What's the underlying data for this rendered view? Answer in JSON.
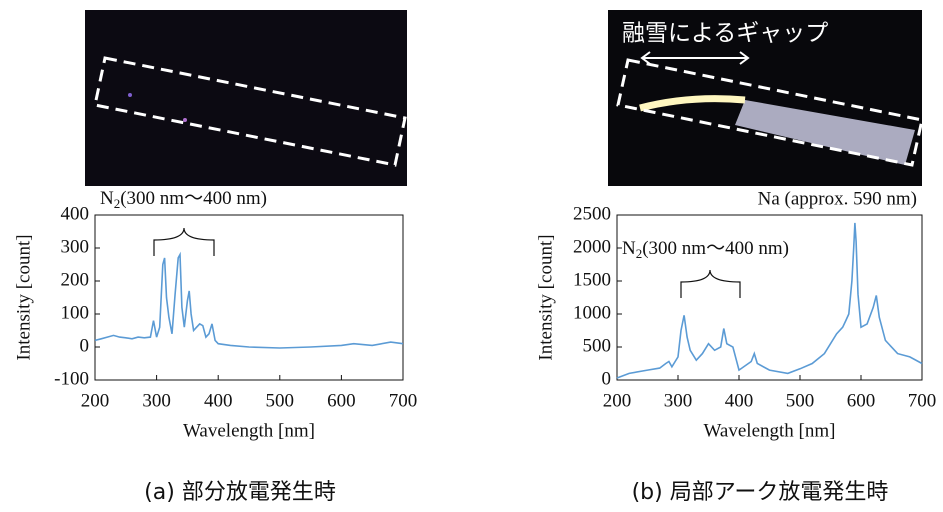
{
  "chart_data": [
    {
      "type": "line",
      "color": "#5b9bd5",
      "x": [
        200,
        210,
        220,
        230,
        240,
        250,
        260,
        270,
        280,
        290,
        295,
        300,
        305,
        310,
        313,
        316,
        320,
        325,
        330,
        335,
        338,
        341,
        345,
        350,
        353,
        356,
        360,
        365,
        370,
        375,
        380,
        385,
        390,
        395,
        400,
        420,
        450,
        500,
        550,
        600,
        620,
        650,
        680,
        700
      ],
      "values": [
        20,
        25,
        30,
        35,
        30,
        28,
        25,
        30,
        28,
        30,
        80,
        30,
        60,
        250,
        270,
        150,
        90,
        40,
        160,
        270,
        280,
        120,
        60,
        140,
        170,
        100,
        50,
        60,
        70,
        65,
        30,
        40,
        70,
        20,
        10,
        5,
        0,
        -3,
        0,
        5,
        10,
        5,
        15,
        10
      ],
      "xlim": [
        200,
        700
      ],
      "ylim": [
        -100,
        400
      ],
      "xticks": [
        200,
        300,
        400,
        500,
        600,
        700
      ],
      "yticks": [
        -100,
        0,
        100,
        200,
        300,
        400
      ],
      "xlabel": "Wavelength [nm]",
      "ylabel": "Intensity [count]",
      "annotation": {
        "main": "N",
        "sub": "2",
        "rest": "(300 nm〜400 nm)"
      },
      "caption": "(a) 部分放電発生時"
    },
    {
      "type": "line",
      "color": "#5b9bd5",
      "x": [
        200,
        220,
        250,
        270,
        280,
        285,
        290,
        300,
        305,
        310,
        315,
        320,
        330,
        340,
        350,
        360,
        370,
        375,
        380,
        390,
        400,
        420,
        425,
        430,
        450,
        480,
        500,
        520,
        540,
        560,
        570,
        575,
        580,
        585,
        588,
        590,
        592,
        595,
        600,
        610,
        620,
        625,
        630,
        640,
        660,
        680,
        700
      ],
      "values": [
        30,
        100,
        150,
        180,
        250,
        280,
        200,
        350,
        750,
        980,
        650,
        450,
        300,
        400,
        550,
        450,
        500,
        780,
        550,
        500,
        150,
        280,
        400,
        250,
        150,
        100,
        170,
        250,
        400,
        700,
        800,
        900,
        1000,
        1500,
        2000,
        2380,
        2100,
        1300,
        800,
        850,
        1100,
        1280,
        950,
        600,
        400,
        350,
        250
      ],
      "xlim": [
        200,
        700
      ],
      "ylim": [
        0,
        2500
      ],
      "xticks": [
        200,
        300,
        400,
        500,
        600,
        700
      ],
      "yticks": [
        0,
        500,
        1000,
        1500,
        2000,
        2500
      ],
      "xlabel": "Wavelength [nm]",
      "ylabel": "Intensity [count]",
      "annotation": {
        "main": "N",
        "sub": "2",
        "rest": "(300 nm〜400 nm)"
      },
      "annotation2": "Na (approx. 590 nm)",
      "photo_label": "融雪によるギャップ",
      "caption": "(b) 局部アーク放電発生時"
    }
  ]
}
